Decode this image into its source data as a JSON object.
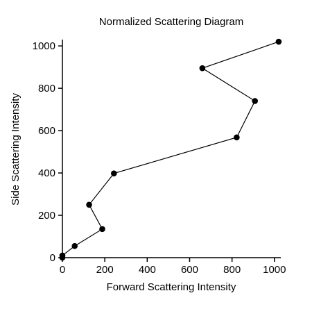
{
  "chart_data": {
    "type": "line",
    "title": "Normalized Scattering Diagram",
    "xlabel": "Forward Scattering Intensity",
    "ylabel": "Side Scattering Intensity",
    "xlim": [
      0,
      1030
    ],
    "ylim": [
      0,
      1030
    ],
    "xticks": [
      0,
      200,
      400,
      600,
      800,
      1000
    ],
    "yticks": [
      0,
      200,
      400,
      600,
      800,
      1000
    ],
    "grid": false,
    "series": [
      {
        "marker": "circle",
        "color": "#000000",
        "points": [
          {
            "x": 0,
            "y": 0
          },
          {
            "x": 0,
            "y": 10
          },
          {
            "x": 58,
            "y": 55
          },
          {
            "x": 188,
            "y": 135
          },
          {
            "x": 126,
            "y": 250
          },
          {
            "x": 243,
            "y": 398
          },
          {
            "x": 822,
            "y": 568
          },
          {
            "x": 908,
            "y": 740
          },
          {
            "x": 660,
            "y": 895
          },
          {
            "x": 1020,
            "y": 1020
          }
        ]
      }
    ]
  }
}
